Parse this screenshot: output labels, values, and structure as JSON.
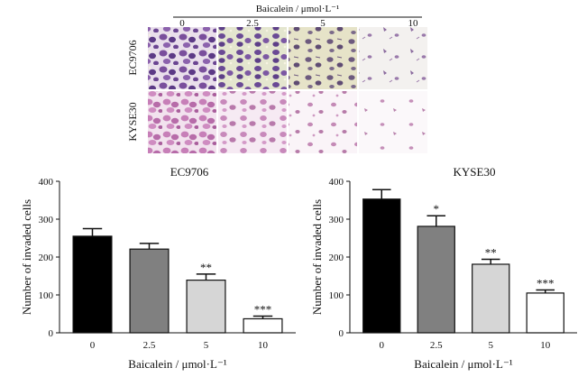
{
  "micrograph_panel": {
    "header": "Baicalein / μmol·L⁻¹",
    "concentrations": [
      "0",
      "2.5",
      "5",
      "10"
    ],
    "cell_lines": [
      "EC9706",
      "KYSE30"
    ]
  },
  "chart_data": [
    {
      "type": "bar",
      "title": "EC9706",
      "xlabel": "Baicalein / μmol·L⁻¹",
      "ylabel": "Number of invaded cells",
      "categories": [
        "0",
        "2.5",
        "5",
        "10"
      ],
      "values": [
        255,
        221,
        139,
        37
      ],
      "errors": [
        20,
        15,
        16,
        7
      ],
      "significance": [
        "",
        "",
        "**",
        "***"
      ],
      "bar_colors": [
        "#000000",
        "#808080",
        "#d6d6d6",
        "#ffffff"
      ],
      "ylim": [
        0,
        400
      ],
      "yticks": [
        0,
        100,
        200,
        300,
        400
      ]
    },
    {
      "type": "bar",
      "title": "KYSE30",
      "xlabel": "Baicalein / μmol·L⁻¹",
      "ylabel": "Number of invaded cells",
      "categories": [
        "0",
        "2.5",
        "5",
        "10"
      ],
      "values": [
        353,
        281,
        181,
        105
      ],
      "errors": [
        25,
        28,
        13,
        8
      ],
      "significance": [
        "",
        "*",
        "**",
        "***"
      ],
      "bar_colors": [
        "#000000",
        "#808080",
        "#d6d6d6",
        "#ffffff"
      ],
      "ylim": [
        0,
        400
      ],
      "yticks": [
        0,
        100,
        200,
        300,
        400
      ]
    }
  ]
}
